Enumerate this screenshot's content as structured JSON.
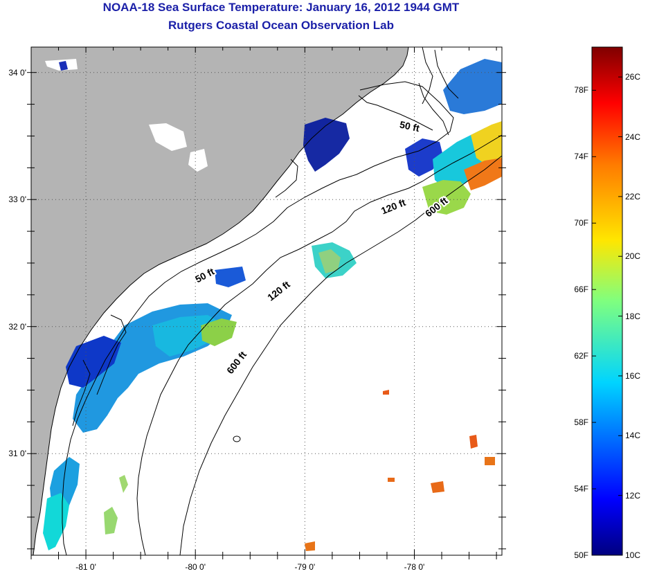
{
  "title": {
    "line1": "NOAA-18 Sea Surface Temperature:  January 16, 2012 1944 GMT",
    "line2": "Rutgers Coastal Ocean Observation Lab"
  },
  "map": {
    "lon_range": [
      -81.5,
      -77.2
    ],
    "lat_range": [
      30.2,
      34.2
    ],
    "lon_ticks": [
      {
        "value": -81,
        "label": "-81 0'"
      },
      {
        "value": -80,
        "label": "-80 0'"
      },
      {
        "value": -79,
        "label": "-79 0'"
      },
      {
        "value": -78,
        "label": "-78 0'"
      }
    ],
    "lat_ticks": [
      {
        "value": 34,
        "label": "34 0'"
      },
      {
        "value": 33,
        "label": "33 0'"
      },
      {
        "value": 32,
        "label": "32 0'"
      },
      {
        "value": 31,
        "label": "31 0'"
      }
    ],
    "contours": [
      {
        "label": "50 ft",
        "positions": [
          {
            "lon": -78.05,
            "lat": 33.55,
            "angle": 12
          },
          {
            "lon": -79.9,
            "lat": 32.38,
            "angle": -28
          }
        ]
      },
      {
        "label": "120 ft",
        "positions": [
          {
            "lon": -78.18,
            "lat": 32.92,
            "angle": -22
          },
          {
            "lon": -79.22,
            "lat": 32.26,
            "angle": -38
          }
        ]
      },
      {
        "label": "600 ft",
        "positions": [
          {
            "lon": -77.78,
            "lat": 32.92,
            "angle": -38
          },
          {
            "lon": -79.6,
            "lat": 31.7,
            "angle": -52
          }
        ]
      }
    ],
    "colors": {
      "land": "#b4b4b4",
      "ocean": "#ffffff",
      "coast": "#000000",
      "grid": "#555555"
    }
  },
  "colorbar": {
    "fahrenheit_labels": [
      {
        "value": 78,
        "label": "78F"
      },
      {
        "value": 74,
        "label": "74F"
      },
      {
        "value": 70,
        "label": "70F"
      },
      {
        "value": 66,
        "label": "66F"
      },
      {
        "value": 62,
        "label": "62F"
      },
      {
        "value": 58,
        "label": "58F"
      },
      {
        "value": 54,
        "label": "54F"
      },
      {
        "value": 50,
        "label": "50F"
      }
    ],
    "celsius_labels": [
      {
        "value": 26,
        "label": "26C"
      },
      {
        "value": 24,
        "label": "24C"
      },
      {
        "value": 22,
        "label": "22C"
      },
      {
        "value": 20,
        "label": "20C"
      },
      {
        "value": 18,
        "label": "18C"
      },
      {
        "value": 16,
        "label": "16C"
      },
      {
        "value": 14,
        "label": "14C"
      },
      {
        "value": 12,
        "label": "12C"
      },
      {
        "value": 10,
        "label": "10C"
      }
    ],
    "range_c": [
      10,
      27
    ],
    "colormap": "jet"
  }
}
